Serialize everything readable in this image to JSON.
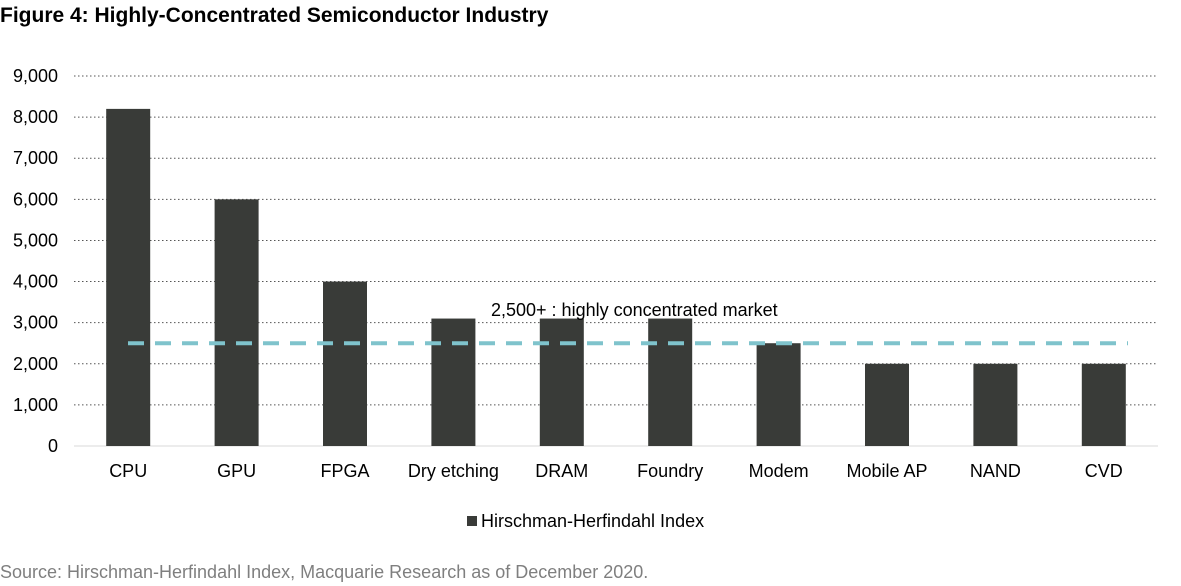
{
  "title": "Figure 4: Highly-Concentrated Semiconductor Industry",
  "source": "Source: Hirschman-Herfindahl Index, Macquarie Research as of December 2020.",
  "chart_data": {
    "type": "bar",
    "categories": [
      "CPU",
      "GPU",
      "FPGA",
      "Dry etching",
      "DRAM",
      "Foundry",
      "Modem",
      "Mobile AP",
      "NAND",
      "CVD"
    ],
    "series": [
      {
        "name": "Hirschman-Herfindahl Index",
        "values": [
          8200,
          6000,
          4000,
          3100,
          3100,
          3100,
          2500,
          2000,
          2000,
          2000
        ]
      }
    ],
    "ylim": [
      0,
      9000
    ],
    "yticks": [
      0,
      1000,
      2000,
      3000,
      4000,
      5000,
      6000,
      7000,
      8000,
      9000
    ],
    "ytick_labels": [
      "0",
      "1,000",
      "2,000",
      "3,000",
      "4,000",
      "5,000",
      "6,000",
      "7,000",
      "8,000",
      "9,000"
    ],
    "xlabel": "",
    "ylabel": "",
    "grid": "horizontal dotted",
    "legend": "bottom-center",
    "reference_line": {
      "value": 2500,
      "label": "2,500+ : highly concentrated market",
      "style": "dashed"
    },
    "colors": {
      "bar": "#393b38",
      "reference": "#7fc3cc",
      "grid": "#555555",
      "source_text": "#7f7f7f"
    }
  }
}
